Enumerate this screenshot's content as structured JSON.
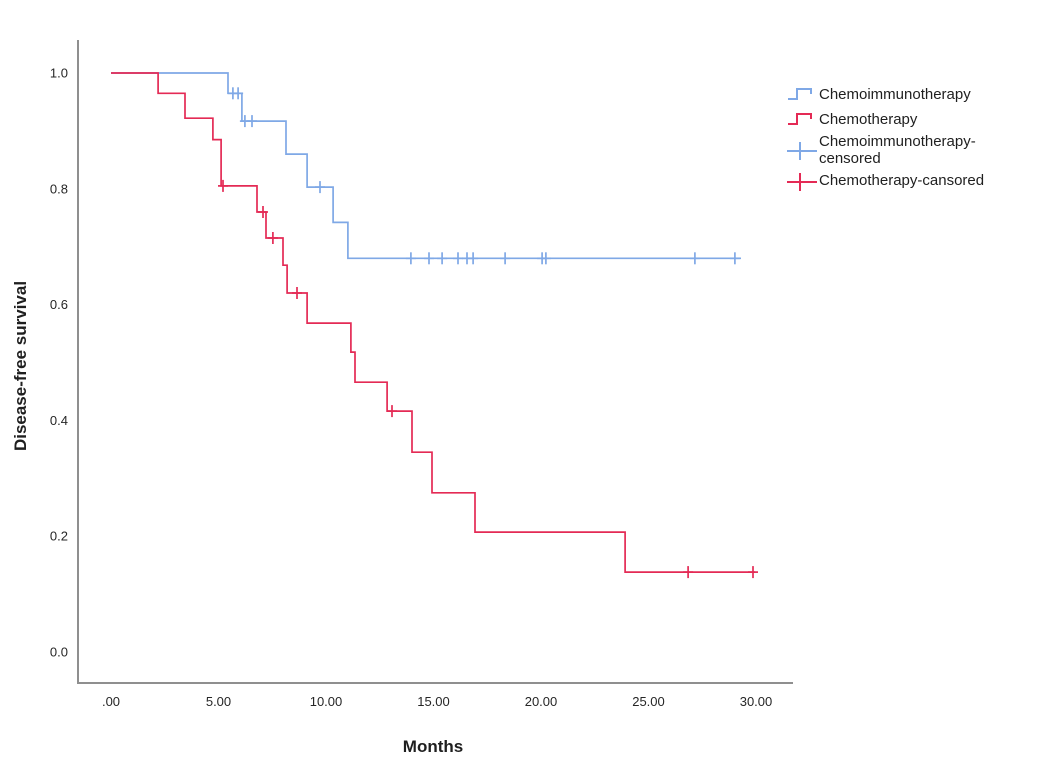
{
  "chart_data": {
    "type": "line",
    "subtype": "kaplan-meier-step-curves",
    "title": "",
    "xlabel": "Months",
    "ylabel": "Disease-free survival",
    "xlim": [
      -1.5,
      31.5
    ],
    "ylim": [
      -0.07,
      1.05
    ],
    "grid": false,
    "legend_position": "top-right-outside",
    "x_ticks": [
      0,
      5,
      10,
      15,
      20,
      25,
      30
    ],
    "x_tick_labels": [
      ".00",
      "5.00",
      "10.00",
      "15.00",
      "20.00",
      "25.00",
      "30.00"
    ],
    "y_ticks": [
      0.0,
      0.2,
      0.4,
      0.6,
      0.8,
      1.0
    ],
    "y_tick_labels": [
      "0.0",
      "0.2",
      "0.4",
      "0.6",
      "0.8",
      "1.0"
    ],
    "series": [
      {
        "name": "Chemoimmunotherapy",
        "color": "#7FA8E6",
        "steps": [
          [
            0,
            1.0
          ],
          [
            5.44,
            0.965
          ],
          [
            6.09,
            0.917
          ],
          [
            8.14,
            0.86
          ],
          [
            9.12,
            0.803
          ],
          [
            10.33,
            0.742
          ],
          [
            11.02,
            0.68
          ]
        ],
        "end_time": 29.3,
        "censored": [
          [
            5.67,
            0.965
          ],
          [
            5.91,
            0.965
          ],
          [
            6.23,
            0.917
          ],
          [
            6.56,
            0.917
          ],
          [
            9.72,
            0.803
          ],
          [
            13.95,
            0.68
          ],
          [
            14.79,
            0.68
          ],
          [
            15.4,
            0.68
          ],
          [
            16.14,
            0.68
          ],
          [
            16.56,
            0.68
          ],
          [
            16.84,
            0.68
          ],
          [
            18.33,
            0.68
          ],
          [
            20.05,
            0.68
          ],
          [
            20.23,
            0.68
          ],
          [
            27.16,
            0.68
          ],
          [
            29.02,
            0.68
          ]
        ]
      },
      {
        "name": "Chemotherapy",
        "color": "#E42A55",
        "steps": [
          [
            0,
            1.0
          ],
          [
            2.19,
            0.965
          ],
          [
            3.44,
            0.922
          ],
          [
            4.74,
            0.885
          ],
          [
            5.12,
            0.805
          ],
          [
            6.79,
            0.76
          ],
          [
            7.21,
            0.715
          ],
          [
            8.0,
            0.668
          ],
          [
            8.19,
            0.62
          ],
          [
            9.12,
            0.568
          ],
          [
            11.16,
            0.518
          ],
          [
            11.35,
            0.466
          ],
          [
            12.84,
            0.416
          ],
          [
            14.0,
            0.345
          ],
          [
            14.93,
            0.275
          ],
          [
            16.93,
            0.207
          ],
          [
            23.91,
            0.138
          ]
        ],
        "end_time": 29.95,
        "censored": [
          [
            5.21,
            0.805
          ],
          [
            7.07,
            0.76
          ],
          [
            7.53,
            0.715
          ],
          [
            8.65,
            0.62
          ],
          [
            13.07,
            0.416
          ],
          [
            26.84,
            0.138
          ],
          [
            29.86,
            0.138
          ]
        ]
      }
    ]
  },
  "legend": {
    "items": [
      {
        "label": "Chemoimmunotherapy",
        "type": "step-line",
        "color": "#7FA8E6"
      },
      {
        "label": "Chemotherapy",
        "type": "step-line",
        "color": "#E42A55"
      },
      {
        "label": "Chemoimmunotherapy-censored",
        "type": "plus-marker",
        "color": "#7FA8E6"
      },
      {
        "label": "Chemotherapy-cansored",
        "type": "plus-marker",
        "color": "#E42A55"
      }
    ]
  },
  "colors": {
    "axis_line": "#8f8f8f",
    "tick_text": "#262626",
    "background": "#ffffff"
  }
}
